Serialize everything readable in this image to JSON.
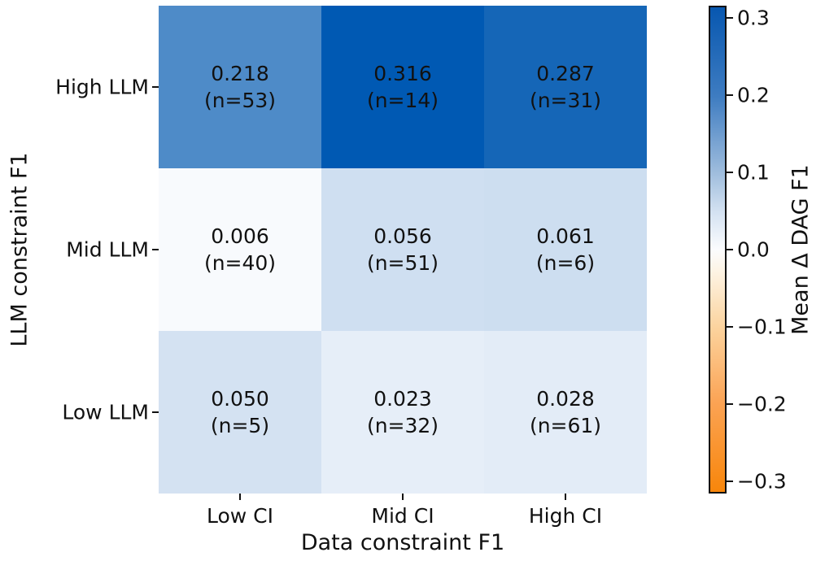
{
  "figure": {
    "background": "#ffffff",
    "frame_color": "#111111",
    "text_color": "#111111"
  },
  "chart_data": {
    "type": "heatmap",
    "title": "",
    "xlabel": "Data constraint F1",
    "ylabel": "LLM constraint F1",
    "x_categories": [
      "Low CI",
      "Mid CI",
      "High CI"
    ],
    "y_categories": [
      "High LLM",
      "Mid LLM",
      "Low LLM"
    ],
    "cells": [
      [
        {
          "row": "High LLM",
          "col": "Low CI",
          "value": 0.218,
          "n": 53,
          "value_label": "0.218",
          "n_label": "(n=53)",
          "color": "#4e8bc8"
        },
        {
          "row": "High LLM",
          "col": "Mid CI",
          "value": 0.316,
          "n": 14,
          "value_label": "0.316",
          "n_label": "(n=14)",
          "color": "#0059b3"
        },
        {
          "row": "High LLM",
          "col": "High CI",
          "value": 0.287,
          "n": 31,
          "value_label": "0.287",
          "n_label": "(n=31)",
          "color": "#1566b7"
        }
      ],
      [
        {
          "row": "Mid LLM",
          "col": "Low CI",
          "value": 0.006,
          "n": 40,
          "value_label": "0.006",
          "n_label": "(n=40)",
          "color": "#f8fafd"
        },
        {
          "row": "Mid LLM",
          "col": "Mid CI",
          "value": 0.056,
          "n": 51,
          "value_label": "0.056",
          "n_label": "(n=51)",
          "color": "#cfdff1"
        },
        {
          "row": "Mid LLM",
          "col": "High CI",
          "value": 0.061,
          "n": 6,
          "value_label": "0.061",
          "n_label": "(n=6)",
          "color": "#cddef0"
        }
      ],
      [
        {
          "row": "Low LLM",
          "col": "Low CI",
          "value": 0.05,
          "n": 5,
          "value_label": "0.050",
          "n_label": "(n=5)",
          "color": "#d4e2f2"
        },
        {
          "row": "Low LLM",
          "col": "Mid CI",
          "value": 0.023,
          "n": 32,
          "value_label": "0.023",
          "n_label": "(n=32)",
          "color": "#e6eef8"
        },
        {
          "row": "Low LLM",
          "col": "High CI",
          "value": 0.028,
          "n": 61,
          "value_label": "0.028",
          "n_label": "(n=61)",
          "color": "#e3ecf7"
        }
      ]
    ],
    "colorbar": {
      "label": "Mean Δ DAG F1",
      "vmin": -0.316,
      "vmax": 0.316,
      "ticks": [
        {
          "value": 0.3,
          "label": "0.3"
        },
        {
          "value": 0.2,
          "label": "0.2"
        },
        {
          "value": 0.1,
          "label": "0.1"
        },
        {
          "value": 0.0,
          "label": "0.0"
        },
        {
          "value": -0.1,
          "label": "−0.1"
        },
        {
          "value": -0.2,
          "label": "−0.2"
        },
        {
          "value": -0.3,
          "label": "−0.3"
        }
      ],
      "gradient_stops": [
        {
          "pos": 0.0,
          "color": "#0757b0"
        },
        {
          "pos": 0.184,
          "color": "#3e7cc1"
        },
        {
          "pos": 0.342,
          "color": "#9fbddd"
        },
        {
          "pos": 0.421,
          "color": "#d3e1f1"
        },
        {
          "pos": 0.5,
          "color": "#fbfcfe"
        },
        {
          "pos": 0.547,
          "color": "#fdf3e3"
        },
        {
          "pos": 0.658,
          "color": "#fcd49f"
        },
        {
          "pos": 0.816,
          "color": "#fba354"
        },
        {
          "pos": 1.0,
          "color": "#f8860b"
        }
      ]
    },
    "annotation_text_color": "#111111",
    "grid": false,
    "legend": false
  }
}
